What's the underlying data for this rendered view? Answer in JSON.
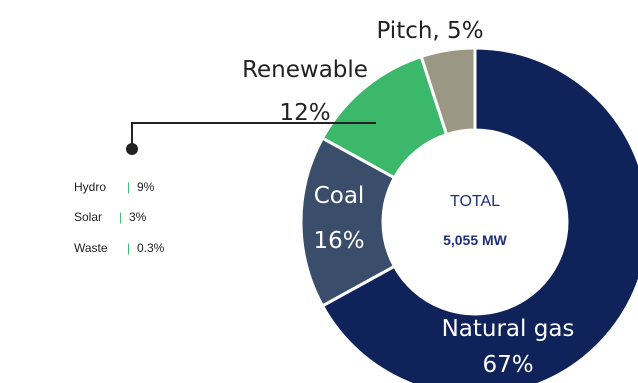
{
  "chart_data": {
    "type": "pie",
    "categories": [
      "Natural gas",
      "Coal",
      "Renewable",
      "Pitch"
    ],
    "values": [
      67,
      16,
      12,
      5
    ],
    "colors": [
      "#0f2259",
      "#3a4d6a",
      "#3cb86b",
      "#9b9785"
    ],
    "labels": [
      {
        "name": "Natural gas",
        "value": "67%"
      },
      {
        "name": "Coal",
        "value": "16%"
      },
      {
        "name": "Renewable",
        "value": "12%"
      },
      {
        "name": "Pitch, 5%",
        "value": ""
      }
    ],
    "center": {
      "title": "TOTAL",
      "value": "5,055 MW"
    },
    "breakdown_colors": {
      "separator": "#3cb86b",
      "connector": "#222222"
    },
    "breakdown": [
      {
        "name": "Hydro",
        "separator": "|",
        "value": "9%"
      },
      {
        "name": "Solar",
        "separator": "|",
        "value": "3%"
      },
      {
        "name": "Waste",
        "separator": "|",
        "value": "0.3%"
      }
    ]
  }
}
